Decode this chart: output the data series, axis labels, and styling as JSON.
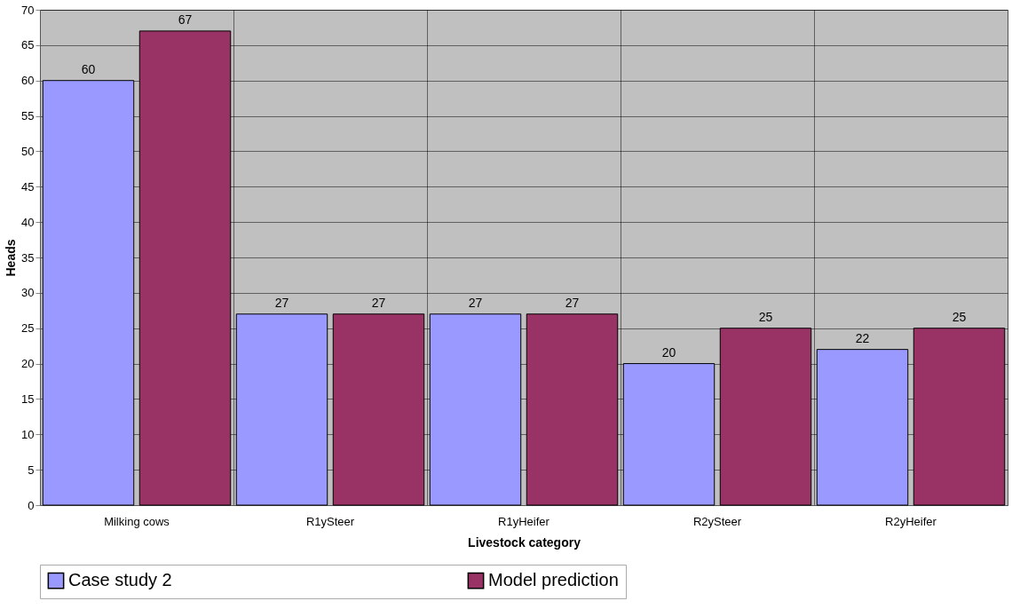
{
  "chart_data": {
    "type": "bar",
    "xlabel": "Livestock category",
    "ylabel": "Heads",
    "categories": [
      "Milking cows",
      "R1ySteer",
      "R1yHeifer",
      "R2ySteer",
      "R2yHeifer"
    ],
    "series": [
      {
        "name": "Case study 2",
        "color": "#9999ff",
        "values": [
          60,
          27,
          27,
          20,
          22
        ]
      },
      {
        "name": "Model prediction",
        "color": "#993366",
        "values": [
          67,
          27,
          27,
          25,
          25
        ]
      }
    ],
    "ylim": [
      0,
      70
    ],
    "yticks": [
      0,
      5,
      10,
      15,
      20,
      25,
      30,
      35,
      40,
      45,
      50,
      55,
      60,
      65,
      70
    ],
    "grid": true,
    "legend": "bottom",
    "data_labels": true
  }
}
